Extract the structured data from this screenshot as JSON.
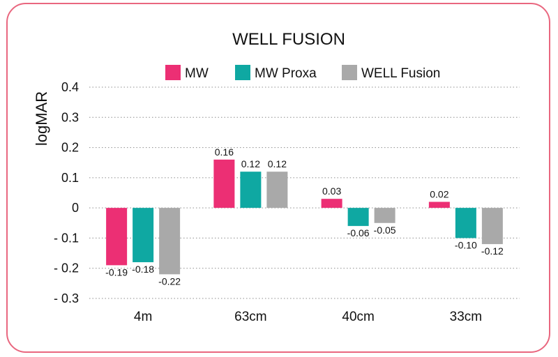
{
  "chart_data": {
    "type": "bar",
    "title": "WELL FUSION",
    "ylabel": "logMAR",
    "xlabel": "",
    "categories": [
      "4m",
      "63cm",
      "40cm",
      "33cm"
    ],
    "series": [
      {
        "name": "MW",
        "color": "#ec2f74",
        "values": [
          -0.19,
          0.16,
          0.03,
          0.02
        ],
        "labels": [
          "-0.19",
          "0.16",
          "0.03",
          "0.02"
        ]
      },
      {
        "name": "MW Proxa",
        "color": "#0fa8a2",
        "values": [
          -0.18,
          0.12,
          -0.06,
          -0.1
        ],
        "labels": [
          "-0.18",
          "0.12",
          "-0.06",
          "-0.10"
        ]
      },
      {
        "name": "WELL Fusion",
        "color": "#a9a9a9",
        "values": [
          -0.22,
          0.12,
          -0.05,
          -0.12
        ],
        "labels": [
          "-0.22",
          "0.12",
          "-0.05",
          "-0.12"
        ]
      }
    ],
    "ylim": [
      -0.3,
      0.4
    ],
    "yticks": [
      0.4,
      0.3,
      0.2,
      0.1,
      0,
      -0.1,
      -0.2,
      -0.3
    ],
    "ytick_labels": [
      "0.4",
      "0.3",
      "0.2",
      "0.1",
      "0",
      "- 0.1",
      "- 0.2",
      "- 0.3"
    ],
    "grid": true,
    "legend_position": "top"
  }
}
